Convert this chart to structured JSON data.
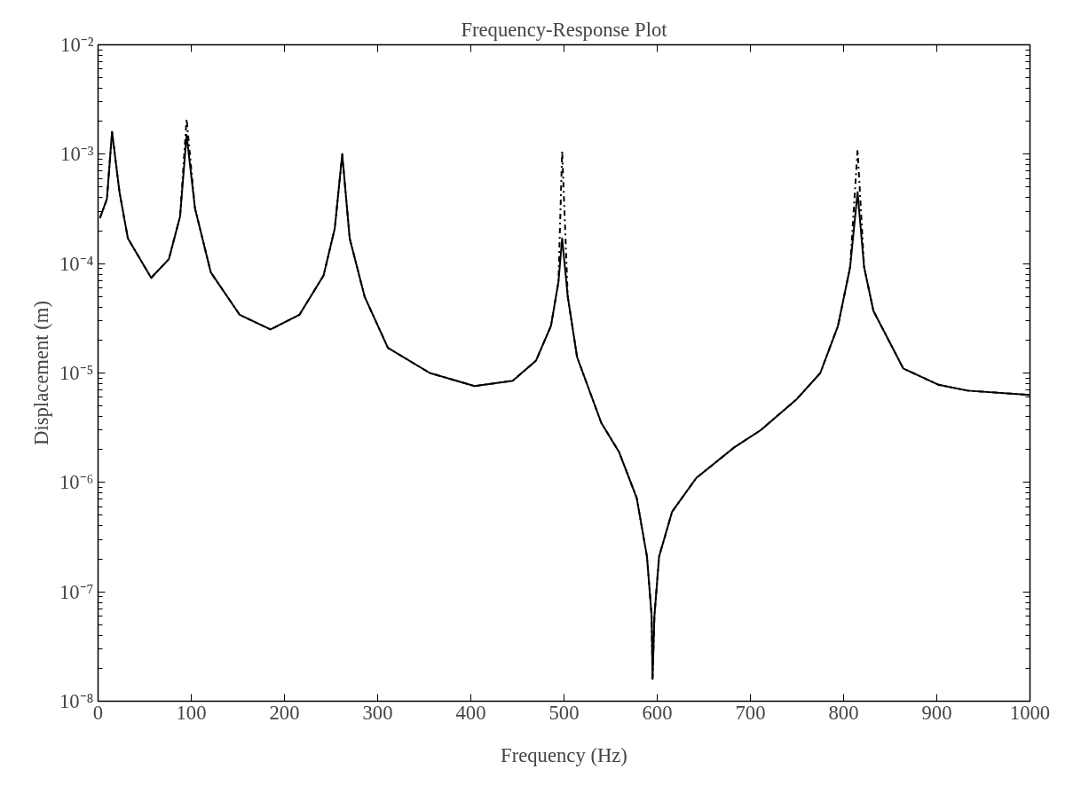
{
  "chart_data": {
    "type": "line",
    "title": "Frequency-Response Plot",
    "xlabel": "Frequency (Hz)",
    "ylabel": "Displacement (m)",
    "log": "y",
    "x": [
      2,
      9.5,
      15,
      23,
      32,
      57,
      76,
      88,
      95,
      104,
      121,
      152,
      185,
      216,
      242,
      254,
      262,
      270,
      286,
      311,
      356,
      404,
      445,
      470,
      486,
      494,
      498,
      504,
      514,
      540,
      559,
      578,
      589,
      594,
      595,
      597,
      602,
      616,
      642,
      683,
      711,
      750,
      775,
      794,
      807,
      815,
      822,
      832,
      864,
      902,
      933,
      1000
    ],
    "series": [
      {
        "color": "#000000",
        "line_style": "dashed",
        "values": [
          0.00026,
          0.00039,
          0.0016,
          0.00045,
          0.00017,
          7.4e-05,
          0.00011,
          0.00027,
          0.0021,
          0.00032,
          8.3e-05,
          3.4e-05,
          2.5e-05,
          3.4e-05,
          7.8e-05,
          0.00021,
          0.001,
          0.00017,
          5e-05,
          1.7e-05,
          1e-05,
          7.6e-06,
          8.5e-06,
          1.3e-05,
          2.7e-05,
          6.8e-05,
          0.00107,
          5e-05,
          1.4e-05,
          3.5e-06,
          1.9e-06,
          7.2e-07,
          2.1e-07,
          6e-08,
          1.6e-08,
          6e-08,
          2.1e-07,
          5.4e-07,
          1.1e-06,
          2.1e-06,
          3e-06,
          5.8e-06,
          1e-05,
          2.7e-05,
          9.3e-05,
          0.0011,
          9.3e-05,
          3.7e-05,
          1.1e-05,
          7.8e-06,
          6.9e-06,
          6.3e-06
        ]
      },
      {
        "color": "#000000",
        "line_style": "solid",
        "values": [
          0.00026,
          0.00039,
          0.0016,
          0.00045,
          0.00017,
          7.4e-05,
          0.00011,
          0.00027,
          0.0015,
          0.00032,
          8.3e-05,
          3.4e-05,
          2.5e-05,
          3.4e-05,
          7.8e-05,
          0.00021,
          0.001,
          0.00017,
          5e-05,
          1.7e-05,
          1e-05,
          7.6e-06,
          8.5e-06,
          1.3e-05,
          2.7e-05,
          6.8e-05,
          0.00017,
          5e-05,
          1.4e-05,
          3.5e-06,
          1.9e-06,
          7.2e-07,
          2.1e-07,
          6e-08,
          1.6e-08,
          6e-08,
          2.1e-07,
          5.4e-07,
          1.1e-06,
          2.1e-06,
          3e-06,
          5.8e-06,
          1e-05,
          2.7e-05,
          9.3e-05,
          0.00045,
          9.3e-05,
          3.7e-05,
          1.1e-05,
          7.8e-06,
          6.9e-06,
          6.3e-06
        ]
      }
    ],
    "xlim": [
      0,
      1000
    ],
    "xticks": [
      0,
      100,
      200,
      300,
      400,
      500,
      600,
      700,
      800,
      900,
      1000
    ],
    "ylim": [
      1e-08,
      0.01
    ],
    "yticks": [
      {
        "value": 1e-08,
        "label": "10⁻⁸"
      },
      {
        "value": 1e-07,
        "label": "10⁻⁷"
      },
      {
        "value": 1e-06,
        "label": "10⁻⁶"
      },
      {
        "value": 1e-05,
        "label": "10⁻⁵"
      },
      {
        "value": 0.0001,
        "label": "10⁻⁴"
      },
      {
        "value": 0.001,
        "label": "10⁻³"
      },
      {
        "value": 0.01,
        "label": "10⁻²"
      }
    ],
    "grid": false,
    "marker": "none"
  }
}
